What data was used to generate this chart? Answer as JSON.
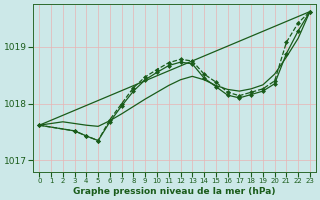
{
  "background_color": "#cce8e8",
  "plot_bg_color": "#cce8e8",
  "grid_color_v": "#e8b4b4",
  "grid_color_h": "#e8b4b4",
  "line_color": "#1a5c1a",
  "xlabel": "Graphe pression niveau de la mer (hPa)",
  "ylim": [
    1016.8,
    1019.75
  ],
  "yticks": [
    1017,
    1018,
    1019
  ],
  "xlim": [
    -0.5,
    23.5
  ],
  "xticks": [
    0,
    1,
    2,
    3,
    4,
    5,
    6,
    7,
    8,
    9,
    10,
    11,
    12,
    13,
    14,
    15,
    16,
    17,
    18,
    19,
    20,
    21,
    22,
    23
  ],
  "series": [
    {
      "x": [
        0,
        23
      ],
      "y": [
        1017.62,
        1019.62
      ],
      "style": "-",
      "marker": false,
      "lw": 0.9
    },
    {
      "x": [
        0,
        1,
        2,
        3,
        4,
        5,
        6,
        7,
        8,
        9,
        10,
        11,
        12,
        13,
        14,
        15,
        16,
        17,
        18,
        19,
        20,
        21,
        22,
        23
      ],
      "y": [
        1017.62,
        1017.65,
        1017.68,
        1017.65,
        1017.62,
        1017.6,
        1017.7,
        1017.82,
        1017.95,
        1018.08,
        1018.2,
        1018.32,
        1018.42,
        1018.48,
        1018.42,
        1018.32,
        1018.25,
        1018.22,
        1018.26,
        1018.33,
        1018.52,
        1018.82,
        1019.15,
        1019.62
      ],
      "style": "-",
      "marker": false,
      "lw": 0.9
    },
    {
      "x": [
        0,
        3,
        4,
        5,
        6,
        7,
        8,
        9,
        10,
        11,
        12,
        13,
        14,
        15,
        16,
        17,
        18,
        19,
        20,
        21,
        22,
        23
      ],
      "y": [
        1017.62,
        1017.52,
        1017.43,
        1017.35,
        1017.72,
        1018.0,
        1018.28,
        1018.47,
        1018.6,
        1018.72,
        1018.78,
        1018.75,
        1018.52,
        1018.38,
        1018.2,
        1018.14,
        1018.2,
        1018.26,
        1018.4,
        1019.08,
        1019.42,
        1019.62
      ],
      "style": "--",
      "marker": true,
      "lw": 0.9
    },
    {
      "x": [
        0,
        3,
        4,
        5,
        6,
        7,
        8,
        9,
        10,
        11,
        12,
        13,
        14,
        15,
        16,
        17,
        18,
        19,
        20,
        21,
        22,
        23
      ],
      "y": [
        1017.62,
        1017.52,
        1017.43,
        1017.35,
        1017.68,
        1017.96,
        1018.22,
        1018.42,
        1018.55,
        1018.67,
        1018.73,
        1018.7,
        1018.45,
        1018.3,
        1018.15,
        1018.1,
        1018.16,
        1018.22,
        1018.35,
        1018.88,
        1019.28,
        1019.62
      ],
      "style": "-",
      "marker": true,
      "lw": 0.9
    }
  ]
}
